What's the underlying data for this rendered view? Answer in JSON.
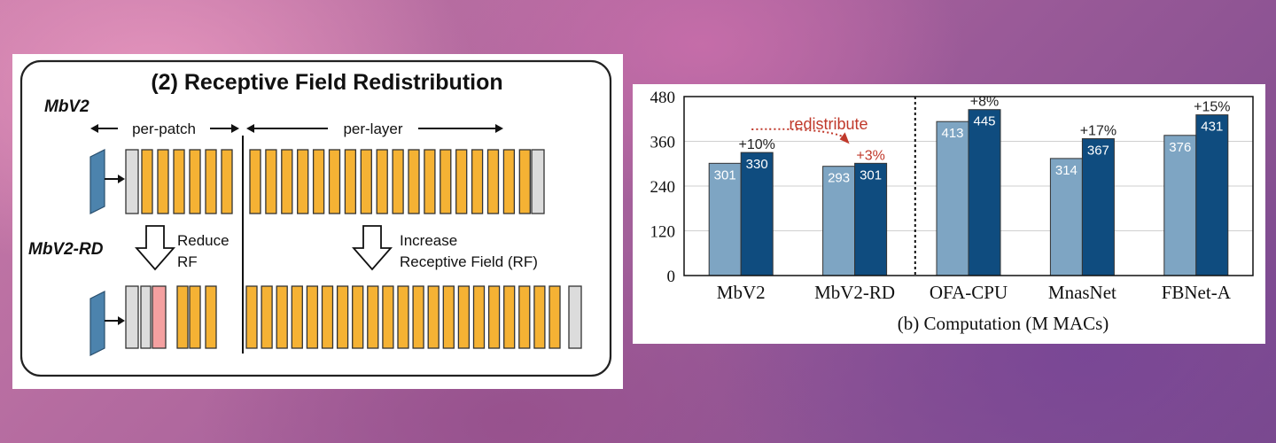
{
  "diagram": {
    "title": "(2) Receptive Field Redistribution",
    "top_model": "MbV2",
    "bottom_model": "MbV2-RD",
    "per_patch_label": "per-patch",
    "per_layer_label": "per-layer",
    "reduce_label_1": "Reduce",
    "reduce_label_2": "RF",
    "increase_label_1": "Increase",
    "increase_label_2": "Receptive Field (RF)",
    "colors": {
      "block": "#f5b234",
      "reduced_block": "#f4a0a0",
      "end_block": "#dcdcdc",
      "input": "#4c83ad"
    }
  },
  "chart_data": {
    "type": "bar",
    "categories": [
      "MbV2",
      "MbV2-RD",
      "OFA-CPU",
      "MnasNet",
      "FBNet-A"
    ],
    "series": [
      {
        "values": [
          301,
          293,
          413,
          314,
          376
        ],
        "color": "#7ea5c3"
      },
      {
        "values": [
          330,
          301,
          445,
          367,
          431
        ],
        "color": "#0f4c7f"
      }
    ],
    "increase_labels": [
      "+10%",
      "+3%",
      "+8%",
      "+17%",
      "+15%"
    ],
    "ylim": [
      0,
      480
    ],
    "yticks": [
      0,
      120,
      240,
      360,
      480
    ],
    "xlabel": "(b) Computation (M MACs)",
    "annotation": "redistribute",
    "divider_after_index": 1
  }
}
